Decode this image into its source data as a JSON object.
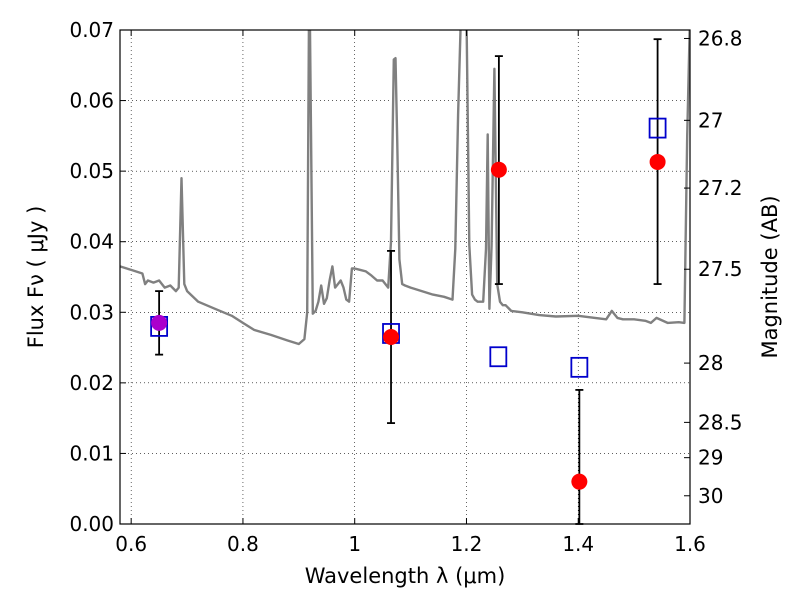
{
  "chart_data": {
    "type": "scatter",
    "title": "",
    "xlabel": "Wavelength  λ (μm)",
    "ylabel": "Flux  Fν  ( μJy )",
    "y2label": "Magnitude (AB)",
    "xlim": [
      0.58,
      1.6
    ],
    "ylim": [
      0.0,
      0.07
    ],
    "grid": true,
    "x_ticks": [
      0.6,
      0.8,
      1.0,
      1.2,
      1.4,
      1.6
    ],
    "x_tick_labels": [
      "0.6",
      "0.8",
      "1",
      "1.2",
      "1.4",
      "1.6"
    ],
    "y_ticks": [
      0.0,
      0.01,
      0.02,
      0.03,
      0.04,
      0.05,
      0.06,
      0.07
    ],
    "y_tick_labels": [
      "0.00",
      "0.01",
      "0.02",
      "0.03",
      "0.04",
      "0.05",
      "0.06",
      "0.07"
    ],
    "y2_ticks": [
      {
        "mag": "26.8",
        "flux": 0.0688
      },
      {
        "mag": "27",
        "flux": 0.0572
      },
      {
        "mag": "27.2",
        "flux": 0.0476
      },
      {
        "mag": "27.5",
        "flux": 0.0361
      },
      {
        "mag": "28",
        "flux": 0.0228
      },
      {
        "mag": "28.5",
        "flux": 0.0144
      },
      {
        "mag": "29",
        "flux": 0.0094
      },
      {
        "mag": "30",
        "flux": 0.004
      }
    ],
    "series": [
      {
        "kind": "line",
        "color": "#808080",
        "x": [
          0.58,
          0.6,
          0.62,
          0.625,
          0.63,
          0.64,
          0.65,
          0.66,
          0.67,
          0.68,
          0.685,
          0.69,
          0.695,
          0.7,
          0.72,
          0.75,
          0.78,
          0.8,
          0.82,
          0.85,
          0.88,
          0.9,
          0.91,
          0.915,
          0.918,
          0.92,
          0.925,
          0.93,
          0.935,
          0.94,
          0.945,
          0.95,
          0.955,
          0.96,
          0.965,
          0.97,
          0.975,
          0.98,
          0.985,
          0.99,
          0.995,
          1.0,
          1.01,
          1.02,
          1.03,
          1.04,
          1.05,
          1.06,
          1.065,
          1.07,
          1.073,
          1.076,
          1.08,
          1.085,
          1.09,
          1.1,
          1.12,
          1.14,
          1.16,
          1.175,
          1.18,
          1.185,
          1.19,
          1.195,
          1.2,
          1.205,
          1.21,
          1.215,
          1.22,
          1.23,
          1.235,
          1.238,
          1.241,
          1.245,
          1.25,
          1.255,
          1.26,
          1.265,
          1.27,
          1.28,
          1.3,
          1.33,
          1.36,
          1.4,
          1.43,
          1.45,
          1.46,
          1.47,
          1.48,
          1.5,
          1.52,
          1.53,
          1.54,
          1.56,
          1.58,
          1.59,
          1.595,
          1.6
        ],
        "y": [
          0.0365,
          0.036,
          0.0355,
          0.034,
          0.0345,
          0.0342,
          0.0345,
          0.0335,
          0.0338,
          0.033,
          0.0335,
          0.049,
          0.034,
          0.033,
          0.0315,
          0.0305,
          0.0295,
          0.0285,
          0.0275,
          0.0268,
          0.026,
          0.0255,
          0.0262,
          0.03,
          0.07,
          0.07,
          0.0298,
          0.0302,
          0.0315,
          0.0338,
          0.0312,
          0.032,
          0.0345,
          0.0365,
          0.0335,
          0.034,
          0.0345,
          0.0335,
          0.0318,
          0.0315,
          0.0362,
          0.0362,
          0.036,
          0.0358,
          0.0352,
          0.0345,
          0.0345,
          0.0335,
          0.04,
          0.0658,
          0.066,
          0.0545,
          0.0375,
          0.034,
          0.0338,
          0.0335,
          0.033,
          0.0325,
          0.0322,
          0.0318,
          0.039,
          0.058,
          0.072,
          0.072,
          0.072,
          0.0395,
          0.0325,
          0.0318,
          0.0315,
          0.0315,
          0.039,
          0.0552,
          0.0305,
          0.0395,
          0.0645,
          0.034,
          0.0315,
          0.031,
          0.031,
          0.0302,
          0.03,
          0.0296,
          0.0294,
          0.0295,
          0.0292,
          0.029,
          0.0302,
          0.0292,
          0.029,
          0.029,
          0.0288,
          0.0285,
          0.0292,
          0.0285,
          0.0286,
          0.0285,
          0.055,
          0.072
        ]
      },
      {
        "kind": "open-squares",
        "color": "#0000cc",
        "x": [
          0.65,
          1.065,
          1.257,
          1.402,
          1.542
        ],
        "y": [
          0.028,
          0.027,
          0.0237,
          0.0222,
          0.0561
        ]
      },
      {
        "kind": "filled-circles-with-errorbars",
        "color": "#ff0000",
        "x": [
          1.065,
          1.258,
          1.402,
          1.542
        ],
        "y": [
          0.0265,
          0.0502,
          0.006,
          0.0513
        ],
        "yerr_low": [
          0.0143,
          0.034,
          0.0,
          0.034
        ],
        "yerr_high": [
          0.0387,
          0.0663,
          0.019,
          0.0687
        ]
      },
      {
        "kind": "filled-circles-with-errorbars",
        "color": "#aa00cc",
        "x": [
          0.65
        ],
        "y": [
          0.0285
        ],
        "yerr_low": [
          0.024
        ],
        "yerr_high": [
          0.033
        ]
      }
    ]
  }
}
